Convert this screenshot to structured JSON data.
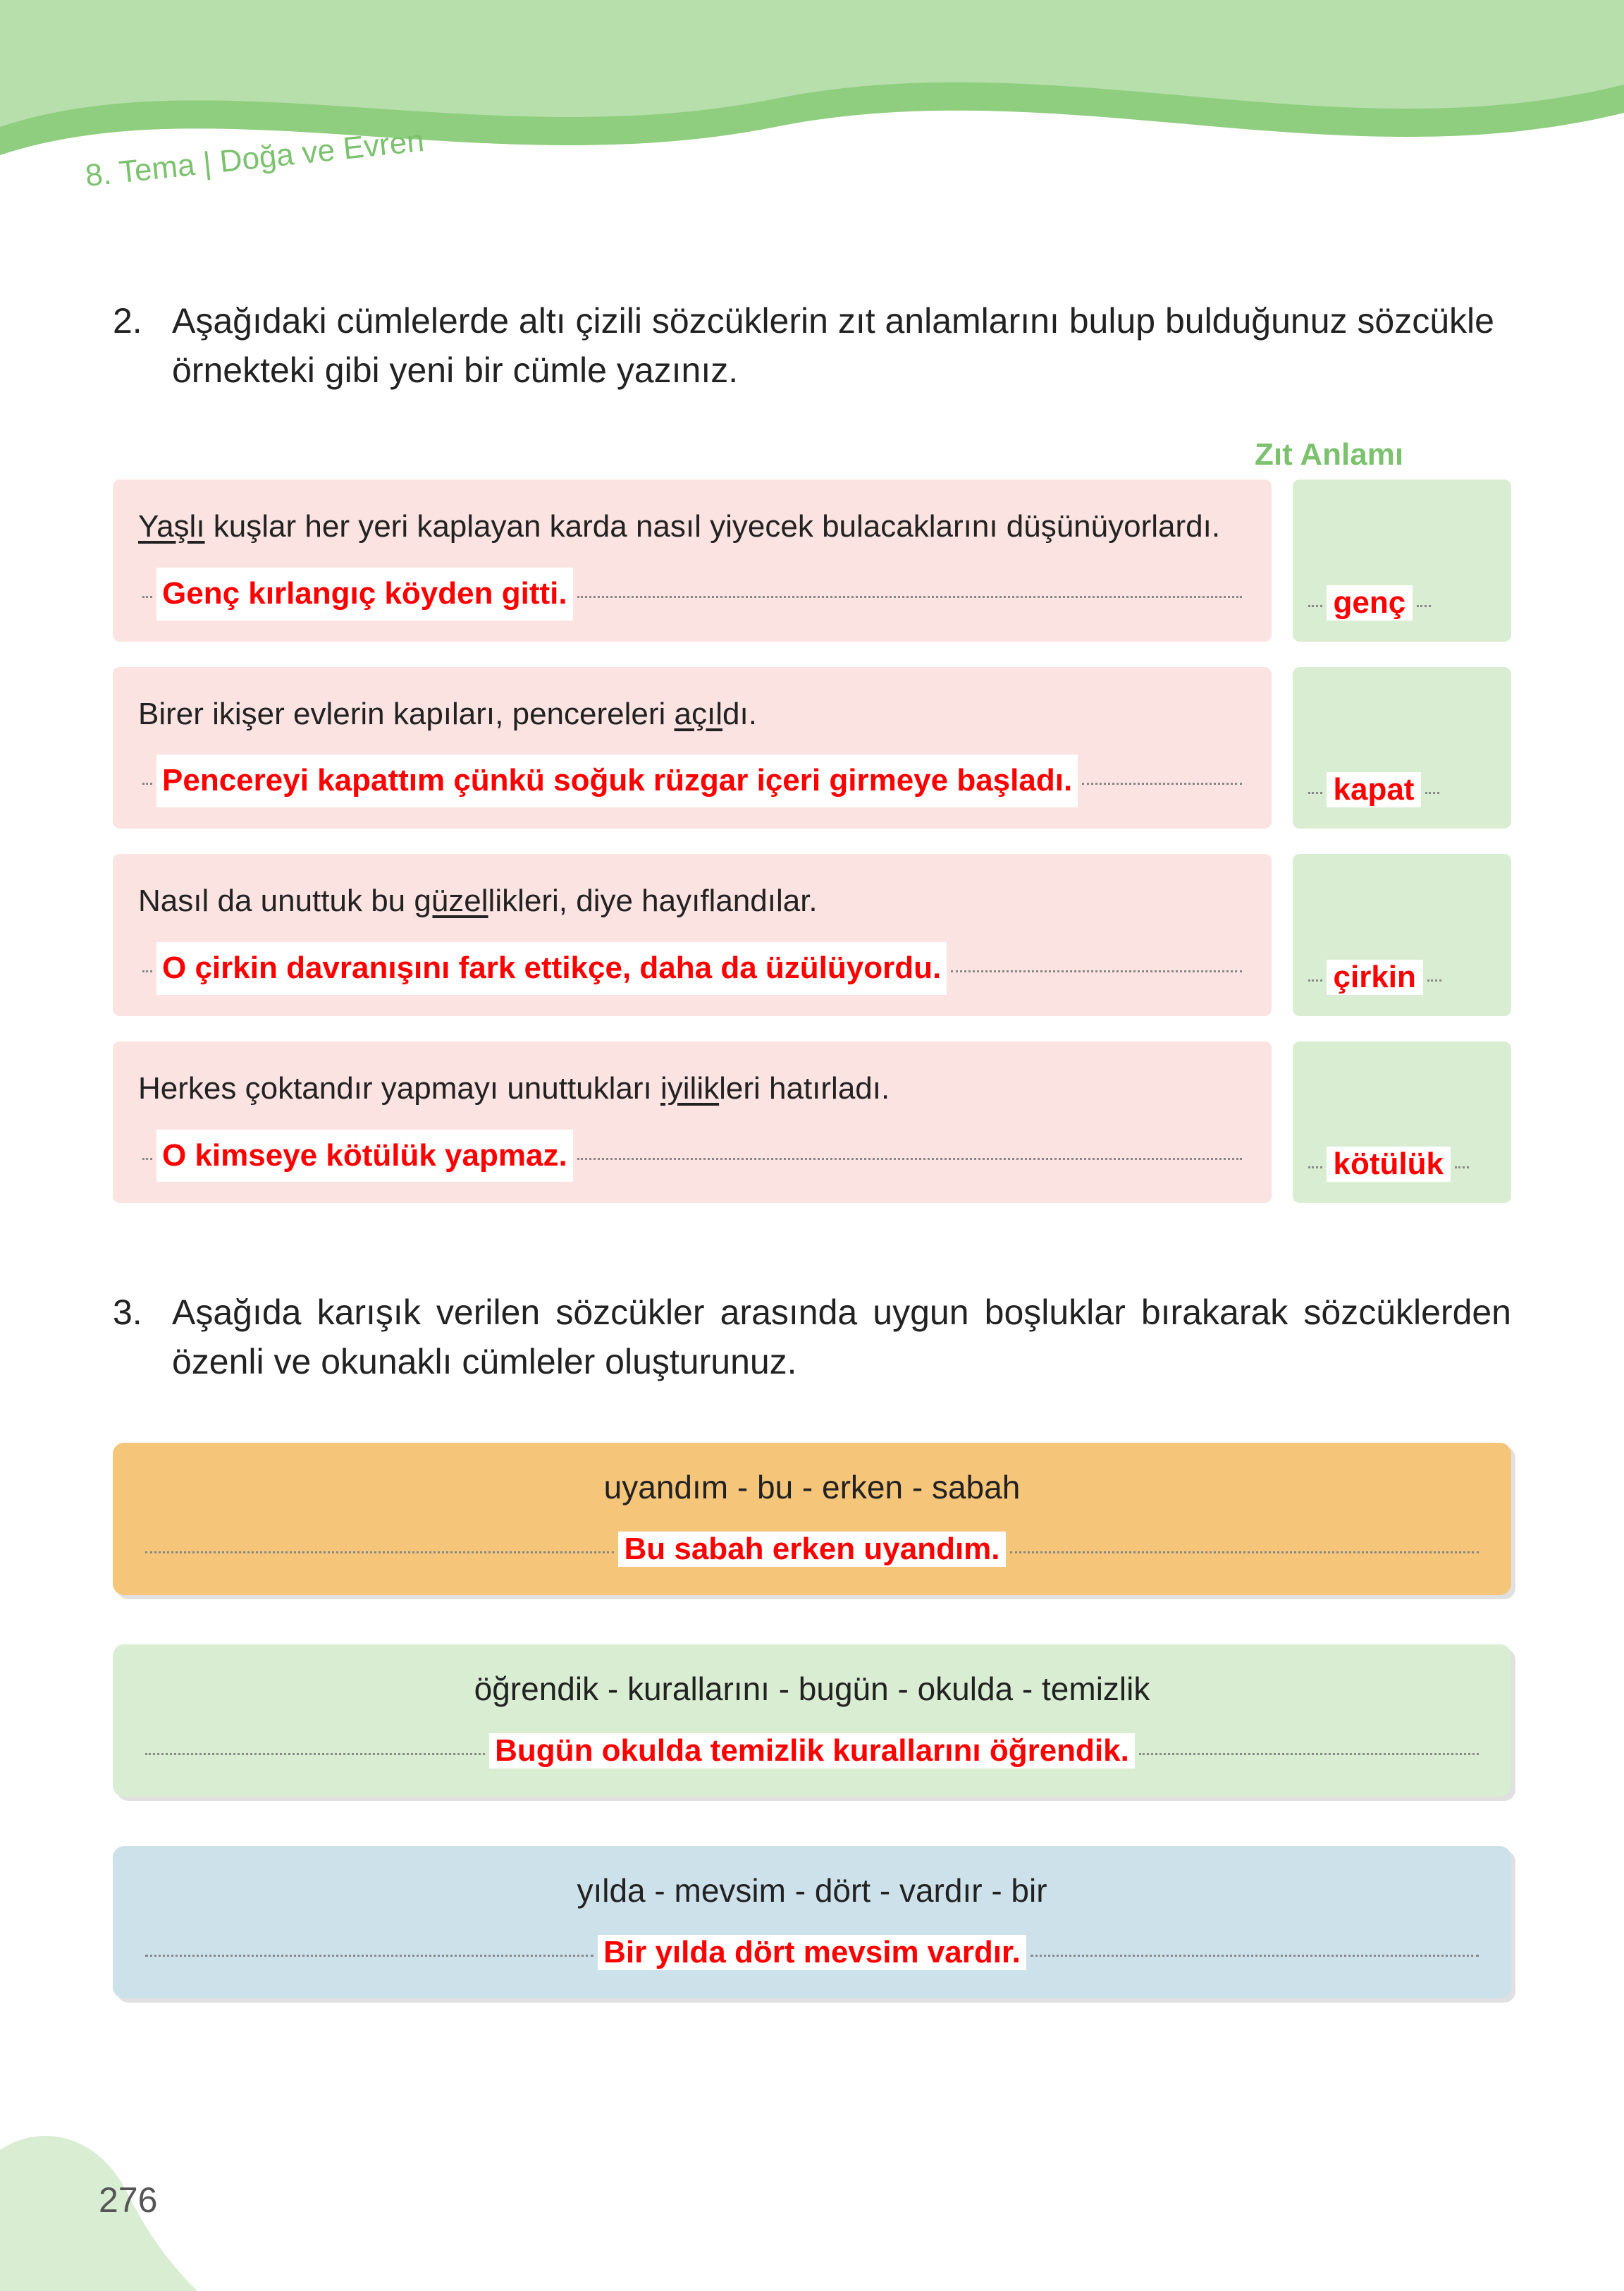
{
  "header": {
    "chapter": "8. Tema",
    "title": "Doğa ve Evren",
    "wave_color": "#8fce7e",
    "text_color": "#7cc26e"
  },
  "page_number": "276",
  "question2": {
    "number": "2.",
    "prompt": "Aşağıdaki cümlelerde altı çizili sözcüklerin zıt anlamlarını bulup bulduğunuz sözcükle örnekteki gibi yeni bir cümle yazınız.",
    "zit_header": "Zıt Anlamı",
    "items": [
      {
        "sentence_pre": "",
        "underlined": "Yaşlı",
        "sentence_post": " kuşlar her yeri kaplayan karda nasıl yiyecek bulacaklarını düşünüyorlardı.",
        "answer_sentence": "Genç kırlangıç köyden gitti.",
        "antonym": "genç"
      },
      {
        "sentence_pre": "Birer ikişer evlerin kapıları, pencereleri ",
        "underlined": "açıl",
        "sentence_post": "dı.",
        "answer_sentence": "Pencereyi kapattım çünkü soğuk rüzgar içeri girmeye başladı.",
        "antonym": "kapat"
      },
      {
        "sentence_pre": "Nasıl da unuttuk bu ",
        "underlined": "güzel",
        "sentence_post": "likleri, diye hayıflandılar.",
        "answer_sentence": "O çirkin davranışını fark ettikçe, daha da üzülüyordu.",
        "antonym": "çirkin"
      },
      {
        "sentence_pre": "Herkes çoktandır yapmayı unuttukları ",
        "underlined": "iyilik",
        "sentence_post": "leri hatırladı.",
        "answer_sentence": "O kimseye kötülük yapmaz.",
        "antonym": "kötülük"
      }
    ]
  },
  "question3": {
    "number": "3.",
    "prompt": "Aşağıda karışık verilen sözcükler arasında uygun boşluklar bırakarak sözcüklerden özenli ve okunaklı cümleler oluşturunuz.",
    "items": [
      {
        "words": "uyandım - bu - erken - sabah",
        "answer": "Bu sabah erken uyandım.",
        "bg": "#f5c57a"
      },
      {
        "words": "öğrendik - kurallarını - bugün - okulda - temizlik",
        "answer": "Bugün okulda temizlik kurallarını öğrendik.",
        "bg": "#d8edd2"
      },
      {
        "words": "yılda - mevsim - dört - vardır - bir",
        "answer": "Bir yılda dört mevsim vardır.",
        "bg": "#cde1ea"
      }
    ]
  },
  "colors": {
    "pink_box": "#fae3e0",
    "green_box": "#d8edd2",
    "answer_red": "#ff0000",
    "body_text": "#222222",
    "dotted": "#888888"
  }
}
